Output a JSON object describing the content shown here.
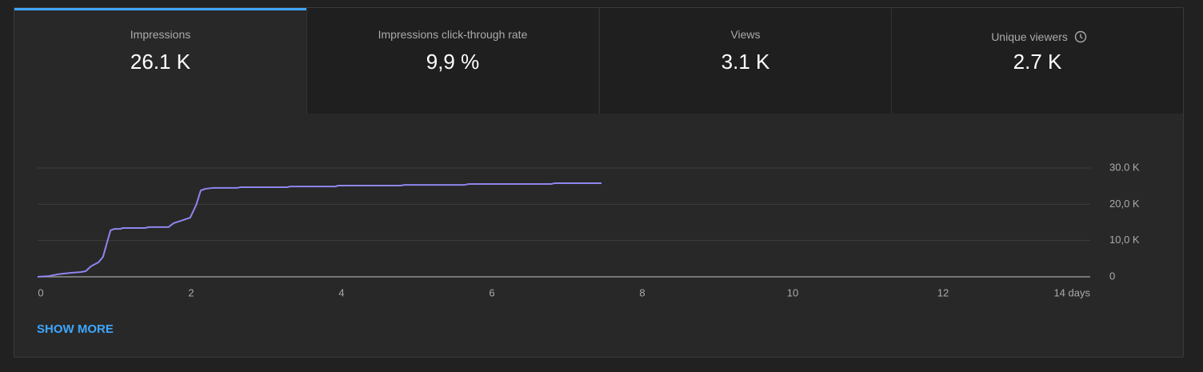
{
  "tabs": [
    {
      "label": "Impressions",
      "value": "26.1 K"
    },
    {
      "label": "Impressions click-through rate",
      "value": "9,9 %"
    },
    {
      "label": "Views",
      "value": "3.1 K"
    },
    {
      "label": "Unique viewers",
      "value": "2.7 K"
    }
  ],
  "chart_data": {
    "type": "line",
    "x": [
      0,
      0.15,
      0.26,
      0.36,
      0.45,
      0.57,
      0.64,
      0.71,
      0.81,
      0.87,
      0.93,
      0.97,
      1.02,
      1.1,
      1.13,
      1.43,
      1.48,
      1.74,
      1.81,
      1.9,
      2.03,
      2.11,
      2.17,
      2.23,
      2.33,
      2.65,
      2.7,
      3.32,
      3.36,
      3.96,
      4.0,
      4.83,
      4.88,
      5.68,
      5.74,
      6.83,
      6.88,
      7.5
    ],
    "series": [
      {
        "name": "Impressions",
        "color": "#8f86ee",
        "values": [
          0,
          200,
          650,
          900,
          1100,
          1300,
          1550,
          2900,
          4000,
          5500,
          9900,
          12800,
          13200,
          13200,
          13450,
          13450,
          13700,
          13700,
          14800,
          15400,
          16300,
          19850,
          23800,
          24250,
          24500,
          24500,
          24700,
          24700,
          24900,
          24900,
          25150,
          25150,
          25350,
          25350,
          25600,
          25600,
          25800,
          25800
        ]
      }
    ],
    "xlim": [
      0,
      14
    ],
    "xticks": [
      0,
      2,
      4,
      6,
      8,
      10,
      12,
      {
        "value": 14,
        "label": "14 days"
      }
    ],
    "ylim": [
      0,
      30000
    ],
    "yticks": [
      0,
      {
        "value": 10000,
        "label": "10,0 K"
      },
      {
        "value": 20000,
        "label": "20,0 K"
      },
      {
        "value": 30000,
        "label": "30.0 K"
      }
    ],
    "grid": true
  },
  "link": "SHOW MORE"
}
